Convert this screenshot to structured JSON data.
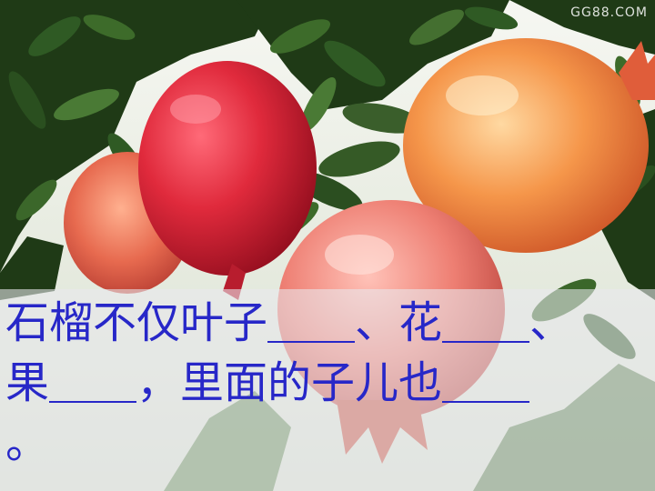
{
  "watermark": "GG88.COM",
  "caption": {
    "line1": "石榴不仅叶子＿＿、花＿＿、",
    "line2": "果＿＿，里面的子儿也＿＿",
    "line3": "。"
  },
  "colors": {
    "caption_text": "#2727c8",
    "pomegranate_red": "#d9203a",
    "pomegranate_orange": "#f08a3c",
    "leaf_green": "#2f5a24"
  },
  "image_content": [
    "pomegranate-fruits",
    "green-leaves",
    "branches"
  ]
}
